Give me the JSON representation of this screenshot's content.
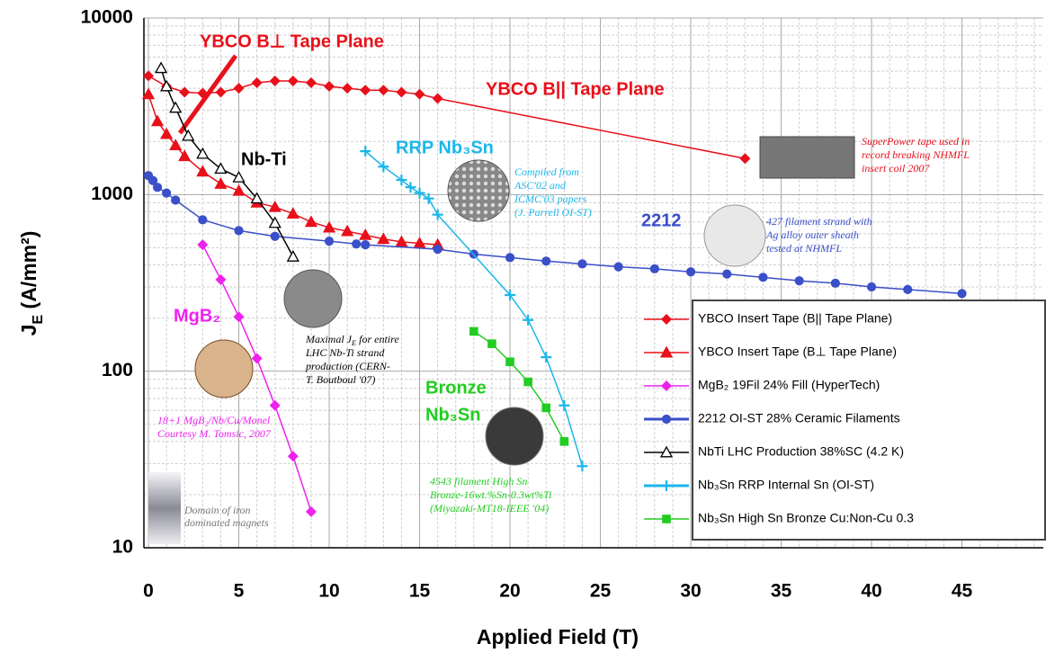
{
  "chart_data": {
    "type": "scatter",
    "x_label": "Applied Field (T)",
    "y_label": [
      "J",
      "E",
      " (A/mm²)"
    ],
    "xlim": [
      -0.25,
      49.5
    ],
    "ylim": [
      10,
      10000
    ],
    "log_y": true,
    "grid": true,
    "xticks": [
      0,
      5,
      10,
      15,
      20,
      25,
      30,
      35,
      40,
      45
    ],
    "yticks": [
      10,
      100,
      1000,
      10000
    ],
    "legend": "lower right",
    "series": [
      {
        "name": "YBCO Insert Tape (B|| Tape Plane)",
        "color": "#e8101a",
        "marker": "diamond",
        "x": [
          0,
          1,
          2,
          3,
          4,
          5,
          6,
          7,
          8,
          9,
          10,
          11,
          12,
          13,
          14,
          15,
          16,
          33
        ],
        "values": [
          4700,
          4100,
          3800,
          3750,
          3800,
          4000,
          4300,
          4400,
          4400,
          4300,
          4100,
          4000,
          3900,
          3900,
          3800,
          3700,
          3500,
          1600
        ]
      },
      {
        "name": "YBCO Insert Tape (B⊥ Tape Plane)",
        "color": "#e8101a",
        "marker": "triangle",
        "x": [
          0,
          0.5,
          1,
          1.5,
          2,
          3,
          4,
          5,
          6,
          7,
          8,
          9,
          10,
          11,
          12,
          13,
          14,
          15,
          16
        ],
        "values": [
          3700,
          2600,
          2200,
          1900,
          1650,
          1350,
          1150,
          1050,
          900,
          850,
          780,
          700,
          650,
          620,
          590,
          560,
          540,
          530,
          520
        ]
      },
      {
        "name": "MgB₂ 19Fil 24% Fill (HyperTech)",
        "color": "#ee22ee",
        "marker": "diamond",
        "x": [
          3,
          4,
          5,
          6,
          7,
          8,
          9
        ],
        "values": [
          520,
          330,
          203,
          118,
          64,
          33,
          16
        ]
      },
      {
        "name": "2212 OI-ST 28% Ceramic Filaments",
        "color": "#3a4fc8",
        "marker": "circle",
        "x": [
          0,
          0.25,
          0.5,
          1,
          1.5,
          3,
          5,
          7,
          10,
          11.5,
          12,
          16,
          18,
          20,
          22,
          24,
          26,
          28,
          30,
          32,
          34,
          36,
          38,
          40,
          42,
          45
        ],
        "values": [
          1280,
          1200,
          1100,
          1020,
          930,
          720,
          625,
          580,
          545,
          525,
          520,
          490,
          460,
          440,
          420,
          405,
          390,
          380,
          365,
          355,
          340,
          325,
          315,
          300,
          290,
          275
        ]
      },
      {
        "name": "NbTi LHC Production 38%SC (4.2 K)",
        "color": "#000000",
        "marker": "open-triangle",
        "x": [
          0.7,
          1,
          1.5,
          2.2,
          3,
          4,
          5,
          6,
          7,
          8
        ],
        "values": [
          5200,
          4100,
          3100,
          2150,
          1700,
          1400,
          1250,
          950,
          690,
          445
        ]
      },
      {
        "name": "Nb₃Sn RRP Internal Sn (OI-ST)",
        "color": "#1ab7ea",
        "marker": "plus",
        "x": [
          12,
          13,
          14,
          14.5,
          15,
          15.5,
          16,
          20,
          21,
          22,
          23,
          24
        ],
        "values": [
          1760,
          1440,
          1210,
          1100,
          1020,
          950,
          770,
          270,
          195,
          120,
          64,
          29
        ]
      },
      {
        "name": "Nb₃Sn High Sn Bronze Cu:Non-Cu 0.3",
        "color": "#22cc22",
        "marker": "square",
        "x": [
          18,
          19,
          20,
          21,
          22,
          23
        ],
        "values": [
          168,
          143,
          113,
          87,
          62,
          40
        ]
      }
    ],
    "annotations": {
      "ybco_perp": "YBCO B⊥ Tape Plane",
      "ybco_par": "YBCO B|| Tape Plane",
      "nbti": "Nb-Ti",
      "rrp": "RRP Nb₃Sn",
      "bi2212": "2212",
      "mgb2": "MgB₂",
      "bronze": [
        "Bronze",
        "Nb₃Sn"
      ],
      "superpower": [
        "SuperPower tape used in",
        "record breaking NHMFL",
        "insert coil 2007"
      ],
      "compiled": [
        "Compiled from",
        "ASC'02 and",
        "ICMC'03 papers",
        "(J. Parrell OI-ST)"
      ],
      "strand427": [
        "427 filament strand with",
        "Ag alloy outer sheath",
        "tested at NHMFL"
      ],
      "lhc": [
        [
          "Maximal J",
          "E",
          " for entire"
        ],
        "LHC Nb-Ti strand",
        "production (CERN-",
        "T. Boutboul '07)"
      ],
      "mgb2_note": [
        "18+1 MgB₂/Nb/Cu/Monel",
        "Courtesy M. Tomsic, 2007"
      ],
      "bronze_note": [
        "4543 filament High Sn",
        "Bronze-16wt.%Sn-0.3wt%Ti",
        "(Miyazaki-MT18-IEEE '04)"
      ],
      "iron": [
        "Domain of iron",
        "dominated magnets"
      ]
    }
  }
}
